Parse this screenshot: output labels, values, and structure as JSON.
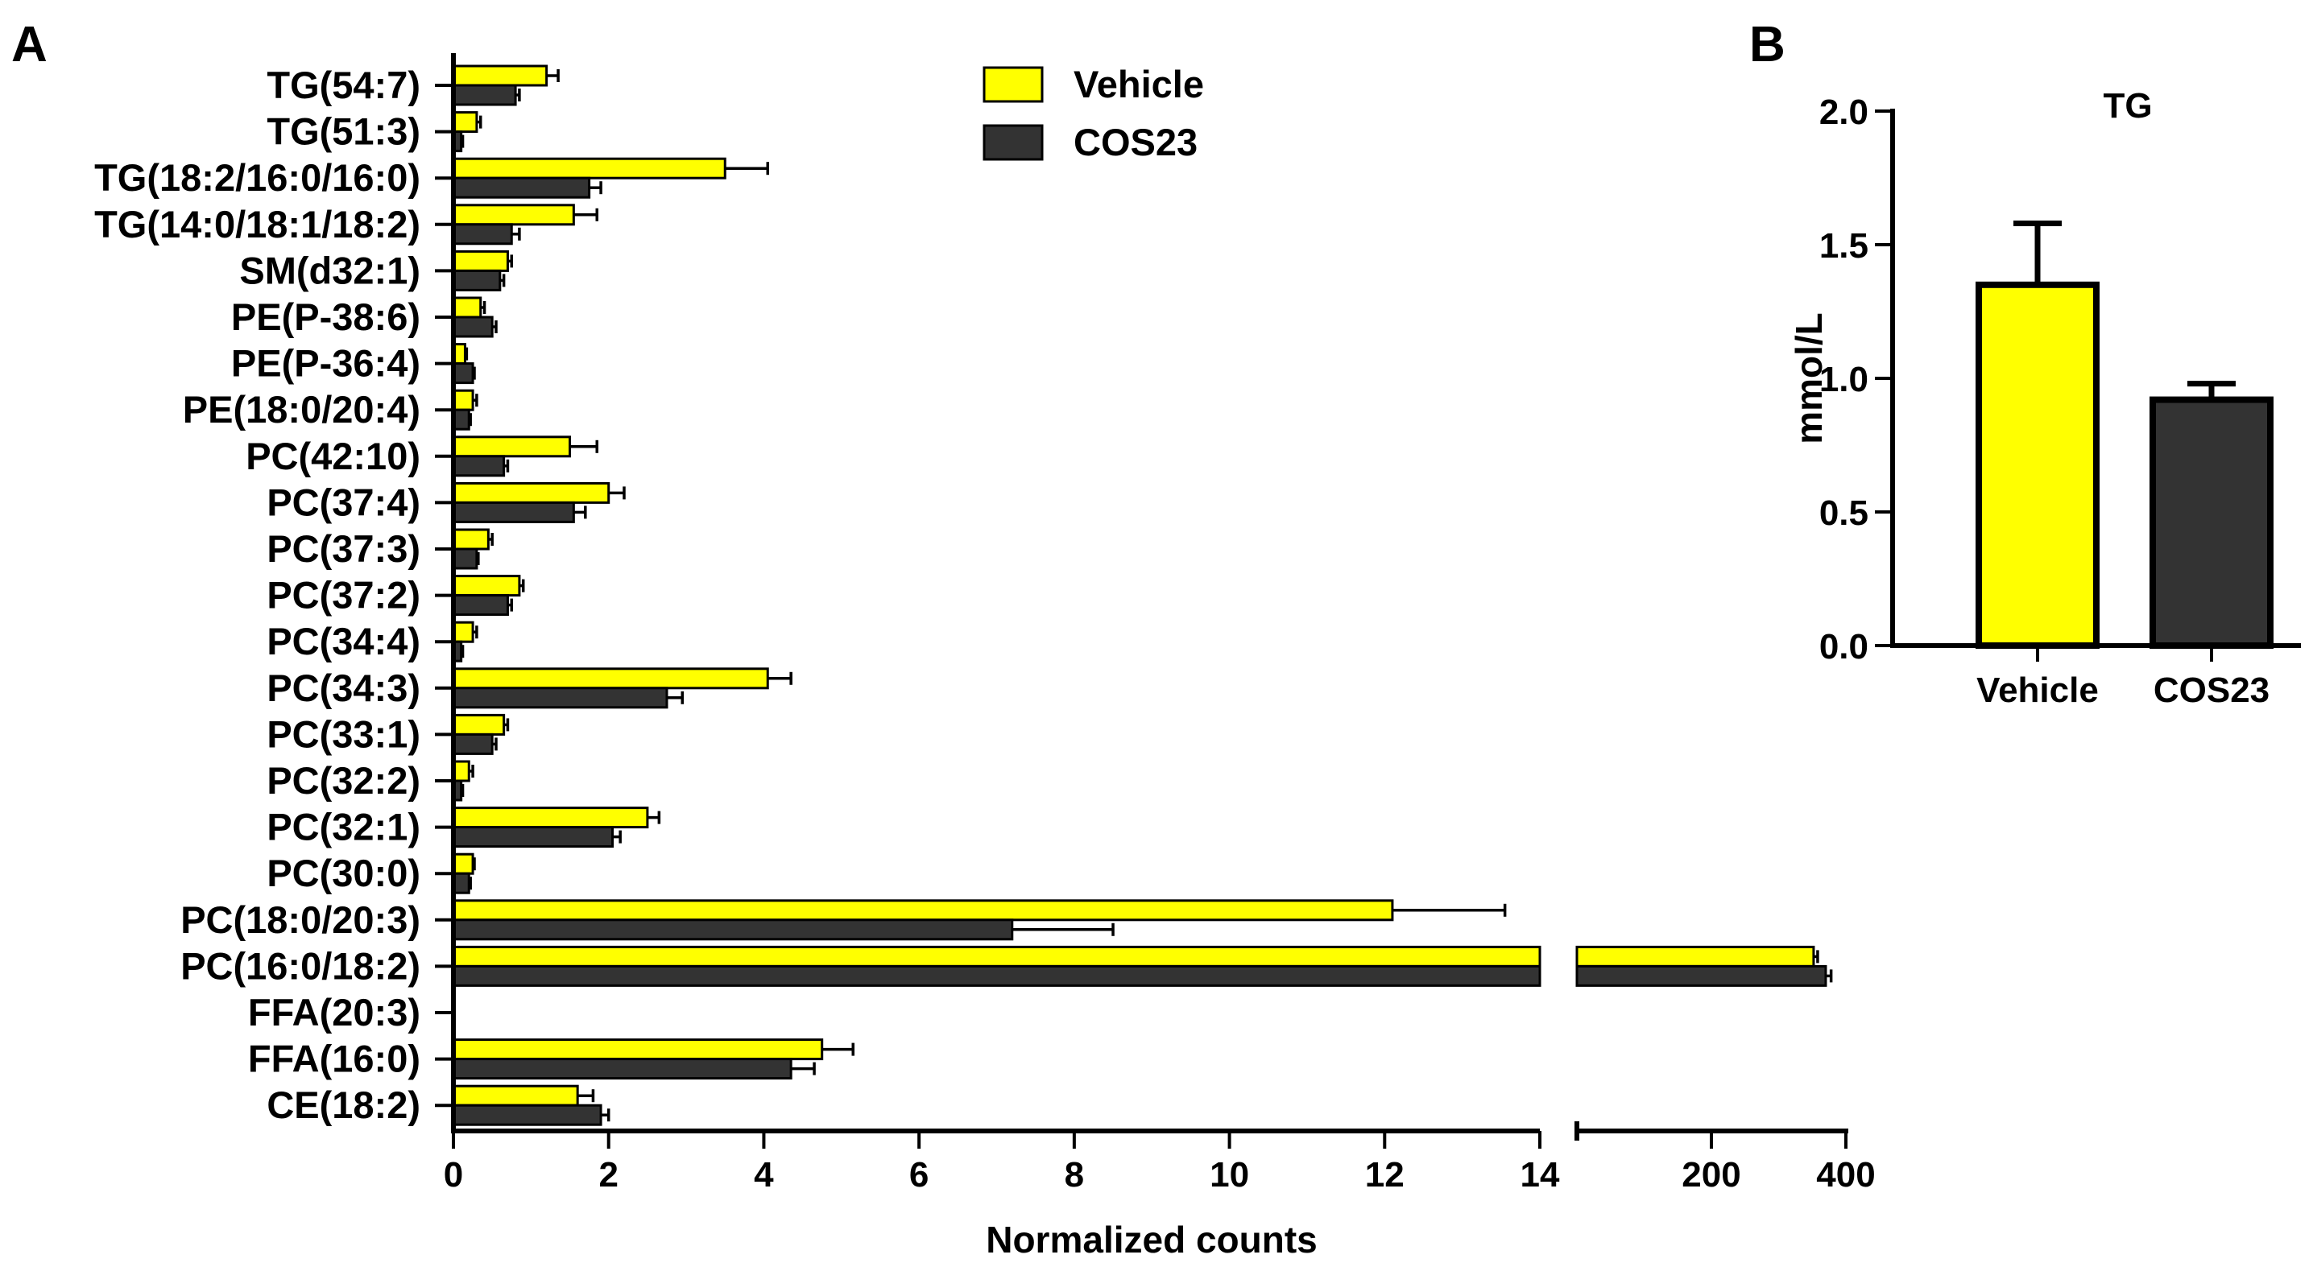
{
  "chart_data": [
    {
      "panel": "A",
      "type": "bar",
      "orientation": "horizontal",
      "categories": [
        "TG(54:7)",
        "TG(51:3)",
        "TG(18:2/16:0/16:0)",
        "TG(14:0/18:1/18:2)",
        "SM(d32:1)",
        "PE(P-38:6)",
        "PE(P-36:4)",
        "PE(18:0/20:4)",
        "PC(42:10)",
        "PC(37:4)",
        "PC(37:3)",
        "PC(37:2)",
        "PC(34:4)",
        "PC(34:3)",
        "PC(33:1)",
        "PC(32:2)",
        "PC(32:1)",
        "PC(30:0)",
        "PC(18:0/20:3)",
        "PC(16:0/18:2)",
        "FFA(20:3)",
        "FFA(16:0)",
        "CE(18:2)"
      ],
      "series": [
        {
          "name": "Vehicle",
          "color": "#ffff00",
          "values": [
            1.2,
            0.3,
            3.5,
            1.55,
            0.7,
            0.35,
            0.15,
            0.25,
            1.5,
            2.0,
            0.45,
            0.85,
            0.25,
            4.05,
            0.65,
            0.2,
            2.5,
            0.25,
            12.1,
            352,
            0,
            4.75,
            1.6
          ],
          "errors": [
            0.15,
            0.05,
            0.55,
            0.3,
            0.05,
            0.05,
            0.02,
            0.05,
            0.35,
            0.2,
            0.05,
            0.05,
            0.05,
            0.3,
            0.05,
            0.05,
            0.15,
            0.02,
            1.45,
            6,
            0,
            0.4,
            0.2
          ]
        },
        {
          "name": "COS23",
          "color": "#333333",
          "values": [
            0.8,
            0.1,
            1.75,
            0.75,
            0.6,
            0.5,
            0.25,
            0.2,
            0.65,
            1.55,
            0.3,
            0.7,
            0.1,
            2.75,
            0.5,
            0.1,
            2.05,
            0.2,
            7.2,
            370,
            0,
            4.35,
            1.9
          ],
          "errors": [
            0.05,
            0.02,
            0.15,
            0.1,
            0.05,
            0.05,
            0.02,
            0.02,
            0.05,
            0.15,
            0.02,
            0.05,
            0.02,
            0.2,
            0.05,
            0.02,
            0.1,
            0.02,
            1.3,
            8,
            0,
            0.3,
            0.1
          ]
        }
      ],
      "xlabel": "Normalized counts",
      "x_segments": [
        {
          "range": [
            0,
            14
          ],
          "ticks": [
            0,
            2,
            4,
            6,
            8,
            10,
            12,
            14
          ]
        },
        {
          "range": [
            0,
            400
          ],
          "ticks": [
            200,
            400
          ]
        }
      ],
      "legend": {
        "position": "top-center",
        "entries": [
          "Vehicle",
          "COS23"
        ]
      }
    },
    {
      "panel": "B",
      "type": "bar",
      "title": "TG",
      "categories": [
        "Vehicle",
        "COS23"
      ],
      "values": [
        1.35,
        0.92
      ],
      "errors": [
        0.23,
        0.06
      ],
      "colors": [
        "#ffff00",
        "#333333"
      ],
      "ylabel": "mmol/L",
      "ylim": [
        0,
        2.0
      ],
      "yticks": [
        "0.0",
        "0.5",
        "1.0",
        "1.5",
        "2.0"
      ]
    }
  ],
  "panel_labels": {
    "a": "A",
    "b": "B"
  }
}
